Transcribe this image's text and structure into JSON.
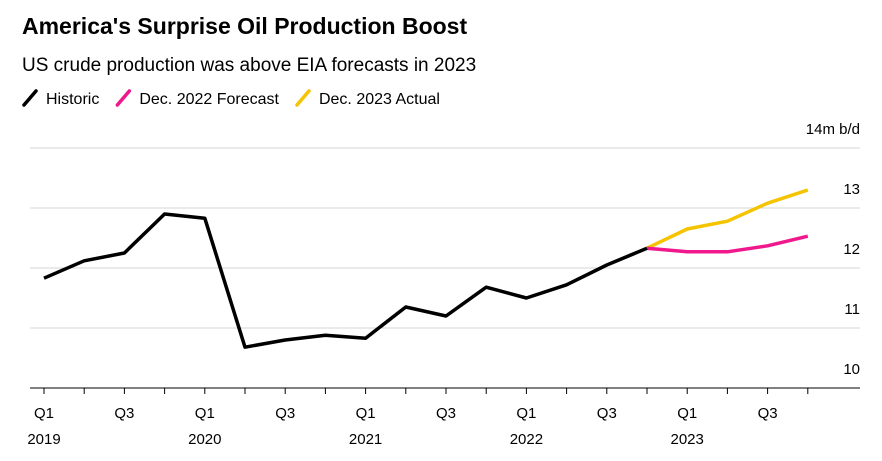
{
  "chart_data": {
    "type": "line",
    "title": "America's Surprise Oil Production Boost",
    "subtitle": "US crude production was above EIA forecasts in 2023",
    "categories": [
      "Q1",
      null,
      "Q3",
      null,
      "Q1",
      null,
      "Q3",
      null,
      "Q1",
      null,
      "Q3",
      null,
      "Q1",
      null,
      "Q3",
      null,
      "Q1",
      null,
      "Q3",
      null
    ],
    "category_years": [
      "2019",
      null,
      null,
      null,
      "2020",
      null,
      null,
      null,
      "2021",
      null,
      null,
      null,
      "2022",
      null,
      null,
      null,
      "2023",
      null,
      null,
      null
    ],
    "series": [
      {
        "name": "Historic",
        "color": "#000000",
        "values": [
          11.83,
          12.12,
          12.25,
          12.9,
          12.83,
          10.68,
          10.8,
          10.88,
          10.83,
          11.35,
          11.2,
          11.68,
          11.5,
          11.72,
          12.05,
          12.33,
          null,
          null,
          null,
          null
        ]
      },
      {
        "name": "Dec. 2022 Forecast",
        "color": "#f0188c",
        "values": [
          null,
          null,
          null,
          null,
          null,
          null,
          null,
          null,
          null,
          null,
          null,
          null,
          null,
          null,
          null,
          12.33,
          12.27,
          12.27,
          12.37,
          12.53
        ]
      },
      {
        "name": "Dec. 2023 Actual",
        "color": "#f5c400",
        "values": [
          null,
          null,
          null,
          null,
          null,
          null,
          null,
          null,
          null,
          null,
          null,
          null,
          null,
          null,
          null,
          12.33,
          12.65,
          12.78,
          13.08,
          13.3
        ]
      }
    ],
    "ylim": [
      10,
      14
    ],
    "yticks": [
      10,
      11,
      12,
      13,
      {
        "value": 14,
        "label": "14m b/d"
      }
    ],
    "grid": true
  }
}
